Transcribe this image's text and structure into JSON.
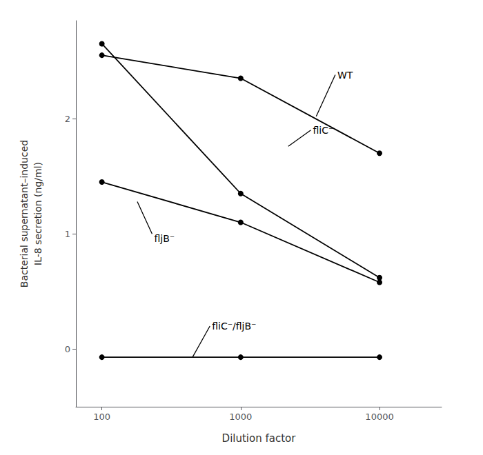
{
  "chart_data": {
    "type": "line",
    "xlabel": "Dilution factor",
    "ylabel": "Bacterial supernatant–induced\nIL-8 secretion (ng/ml)",
    "x": [
      100,
      1000,
      10000
    ],
    "series": [
      {
        "values": [
          2.55,
          2.35,
          1.7
        ],
        "color": "#000000",
        "marker": "circle"
      },
      {
        "values": [
          2.65,
          1.35,
          0.62
        ],
        "color": "#000000",
        "marker": "circle"
      },
      {
        "values": [
          1.45,
          1.1,
          0.58
        ],
        "color": "#000000",
        "marker": "circle"
      },
      {
        "values": [
          -0.07,
          -0.07,
          -0.07
        ],
        "color": "#000000",
        "marker": "circle"
      }
    ],
    "xlim": [
      65,
      28000
    ],
    "ylim": [
      -0.5,
      2.85
    ],
    "xticks": [
      100,
      1000,
      10000
    ],
    "yticks": [
      0,
      1,
      2
    ],
    "log": "x",
    "grid": false,
    "annotations": [
      {
        "text": "WT",
        "xy": [
          3500,
          2.02
        ],
        "xytext": [
          4800,
          2.38
        ]
      },
      {
        "text": "fliC⁻",
        "xy": [
          2200,
          1.76
        ],
        "xytext": [
          3200,
          1.9
        ]
      },
      {
        "text": "fljB⁻",
        "xy": [
          180,
          1.28
        ],
        "xytext": [
          230,
          1.0
        ]
      },
      {
        "text": "fliC⁻/fljB⁻",
        "xy": [
          450,
          -0.07
        ],
        "xytext": [
          600,
          0.2
        ]
      }
    ]
  }
}
